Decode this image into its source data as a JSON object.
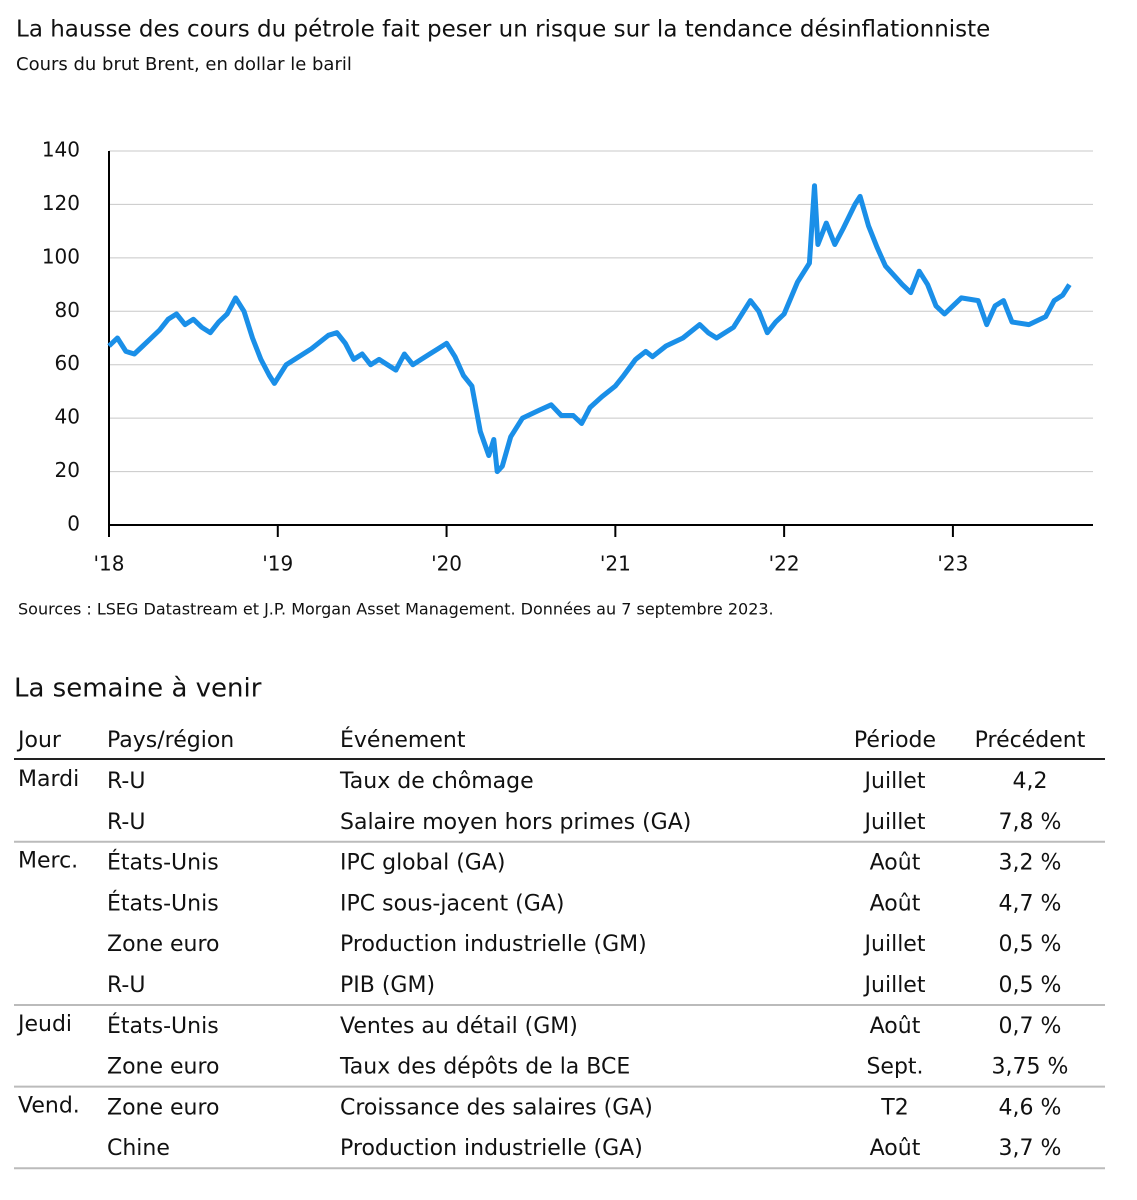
{
  "chart_data": {
    "type": "line",
    "title": "La hausse des cours du pétrole fait peser un risque sur la tendance désinflationniste",
    "subtitle": "Cours du brut Brent, en dollar le baril",
    "source": "Sources : LSEG Datastream et J.P. Morgan Asset Management. Données au 7 septembre 2023.",
    "color": "#1a8fe8",
    "x": [
      2018.0,
      2018.05,
      2018.1,
      2018.15,
      2018.2,
      2018.25,
      2018.3,
      2018.35,
      2018.4,
      2018.45,
      2018.5,
      2018.55,
      2018.6,
      2018.65,
      2018.7,
      2018.75,
      2018.8,
      2018.85,
      2018.9,
      2018.95,
      2018.98,
      2019.05,
      2019.1,
      2019.2,
      2019.3,
      2019.35,
      2019.4,
      2019.45,
      2019.5,
      2019.55,
      2019.6,
      2019.7,
      2019.75,
      2019.8,
      2019.85,
      2019.9,
      2019.95,
      2020.0,
      2020.05,
      2020.1,
      2020.15,
      2020.2,
      2020.25,
      2020.28,
      2020.3,
      2020.33,
      2020.38,
      2020.45,
      2020.55,
      2020.62,
      2020.68,
      2020.75,
      2020.8,
      2020.85,
      2020.92,
      2021.0,
      2021.05,
      2021.12,
      2021.18,
      2021.22,
      2021.3,
      2021.4,
      2021.5,
      2021.55,
      2021.6,
      2021.7,
      2021.8,
      2021.85,
      2021.9,
      2021.95,
      2022.0,
      2022.08,
      2022.15,
      2022.18,
      2022.2,
      2022.25,
      2022.3,
      2022.35,
      2022.42,
      2022.45,
      2022.5,
      2022.55,
      2022.6,
      2022.7,
      2022.75,
      2022.8,
      2022.85,
      2022.9,
      2022.95,
      2023.0,
      2023.05,
      2023.15,
      2023.2,
      2023.25,
      2023.3,
      2023.35,
      2023.45,
      2023.55,
      2023.6,
      2023.65,
      2023.69
    ],
    "values": [
      67,
      70,
      65,
      64,
      67,
      70,
      73,
      77,
      79,
      75,
      77,
      74,
      72,
      76,
      79,
      85,
      80,
      70,
      62,
      56,
      53,
      60,
      62,
      66,
      71,
      72,
      68,
      62,
      64,
      60,
      62,
      58,
      64,
      60,
      62,
      64,
      66,
      68,
      63,
      56,
      52,
      35,
      26,
      32,
      20,
      22,
      33,
      40,
      43,
      45,
      41,
      41,
      38,
      44,
      48,
      52,
      56,
      62,
      65,
      63,
      67,
      70,
      75,
      72,
      70,
      74,
      84,
      80,
      72,
      76,
      79,
      91,
      98,
      127,
      105,
      113,
      105,
      111,
      120,
      123,
      112,
      104,
      97,
      90,
      87,
      95,
      90,
      82,
      79,
      82,
      85,
      84,
      75,
      82,
      84,
      76,
      75,
      78,
      84,
      86,
      90
    ],
    "xlim": [
      2018,
      2023.83
    ],
    "xticks": [
      {
        "value": 2018,
        "label": "'18"
      },
      {
        "value": 2019,
        "label": "'19"
      },
      {
        "value": 2020,
        "label": "'20"
      },
      {
        "value": 2021,
        "label": "'21"
      },
      {
        "value": 2022,
        "label": "'22"
      },
      {
        "value": 2023,
        "label": "'23"
      }
    ],
    "ylim": [
      0,
      140
    ],
    "yticks": [
      0,
      20,
      40,
      60,
      80,
      100,
      120,
      140
    ],
    "grid": true
  },
  "table": {
    "title": "La semaine à venir",
    "header": [
      "Jour",
      "Pays/région",
      "Événement",
      "Période",
      "Précédent"
    ],
    "rows": [
      [
        "Mardi",
        "R-U",
        "Taux de chômage",
        "Juillet",
        "4,2"
      ],
      [
        null,
        "R-U",
        "Salaire moyen hors primes (GA)",
        "Juillet",
        "7,8 %"
      ],
      [
        "Merc.",
        "États-Unis",
        "IPC global (GA)",
        "Août",
        "3,2 %"
      ],
      [
        null,
        "États-Unis",
        "IPC sous-jacent (GA)",
        "Août",
        "4,7 %"
      ],
      [
        null,
        "Zone euro",
        "Production industrielle (GM)",
        "Juillet",
        "0,5 %"
      ],
      [
        null,
        "R-U",
        "PIB (GM)",
        "Juillet",
        "0,5 %"
      ],
      [
        "Jeudi",
        "États-Unis",
        "Ventes au détail (GM)",
        "Août",
        "0,7 %"
      ],
      [
        null,
        "Zone euro",
        "Taux des dépôts de la BCE",
        "Sept.",
        "3,75 %"
      ],
      [
        "Vend.",
        "Zone euro",
        "Croissance des salaires (GA)",
        "T2",
        "4,6 %"
      ],
      [
        null,
        "Chine",
        "Production industrielle (GA)",
        "Août",
        "3,7 %"
      ]
    ]
  }
}
